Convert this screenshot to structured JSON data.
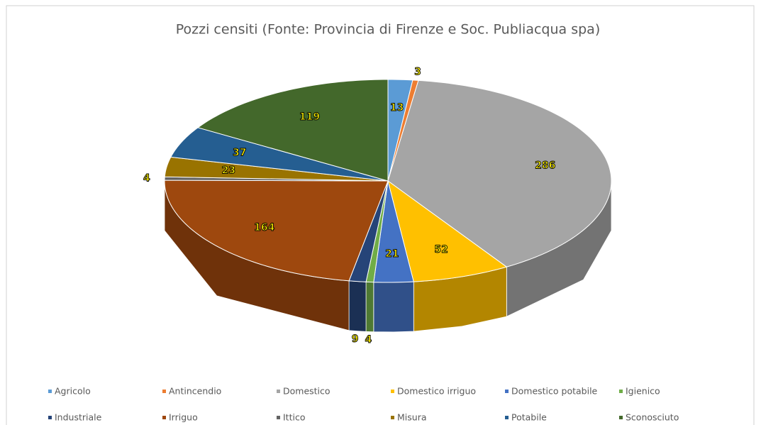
{
  "chart_data": {
    "type": "pie3d",
    "title": "Pozzi censiti (Fonte: Provincia di Firenze e Soc. Publiacqua spa)",
    "categories": [
      "Agricolo",
      "Antincendio",
      "Domestico",
      "Domestico irriguo",
      "Domestico potabile",
      "Igienico",
      "Industriale",
      "Irriguo",
      "Ittico",
      "Misura",
      "Potabile",
      "Sconosciuto"
    ],
    "values": [
      13,
      3,
      286,
      52,
      21,
      4,
      9,
      164,
      4,
      23,
      37,
      119
    ],
    "colors": [
      "#5b9bd5",
      "#ed7d31",
      "#a5a5a5",
      "#ffc000",
      "#4472c4",
      "#70ad47",
      "#264478",
      "#9e480e",
      "#636363",
      "#997300",
      "#255e91",
      "#43682b"
    ],
    "legend": "bottom"
  }
}
